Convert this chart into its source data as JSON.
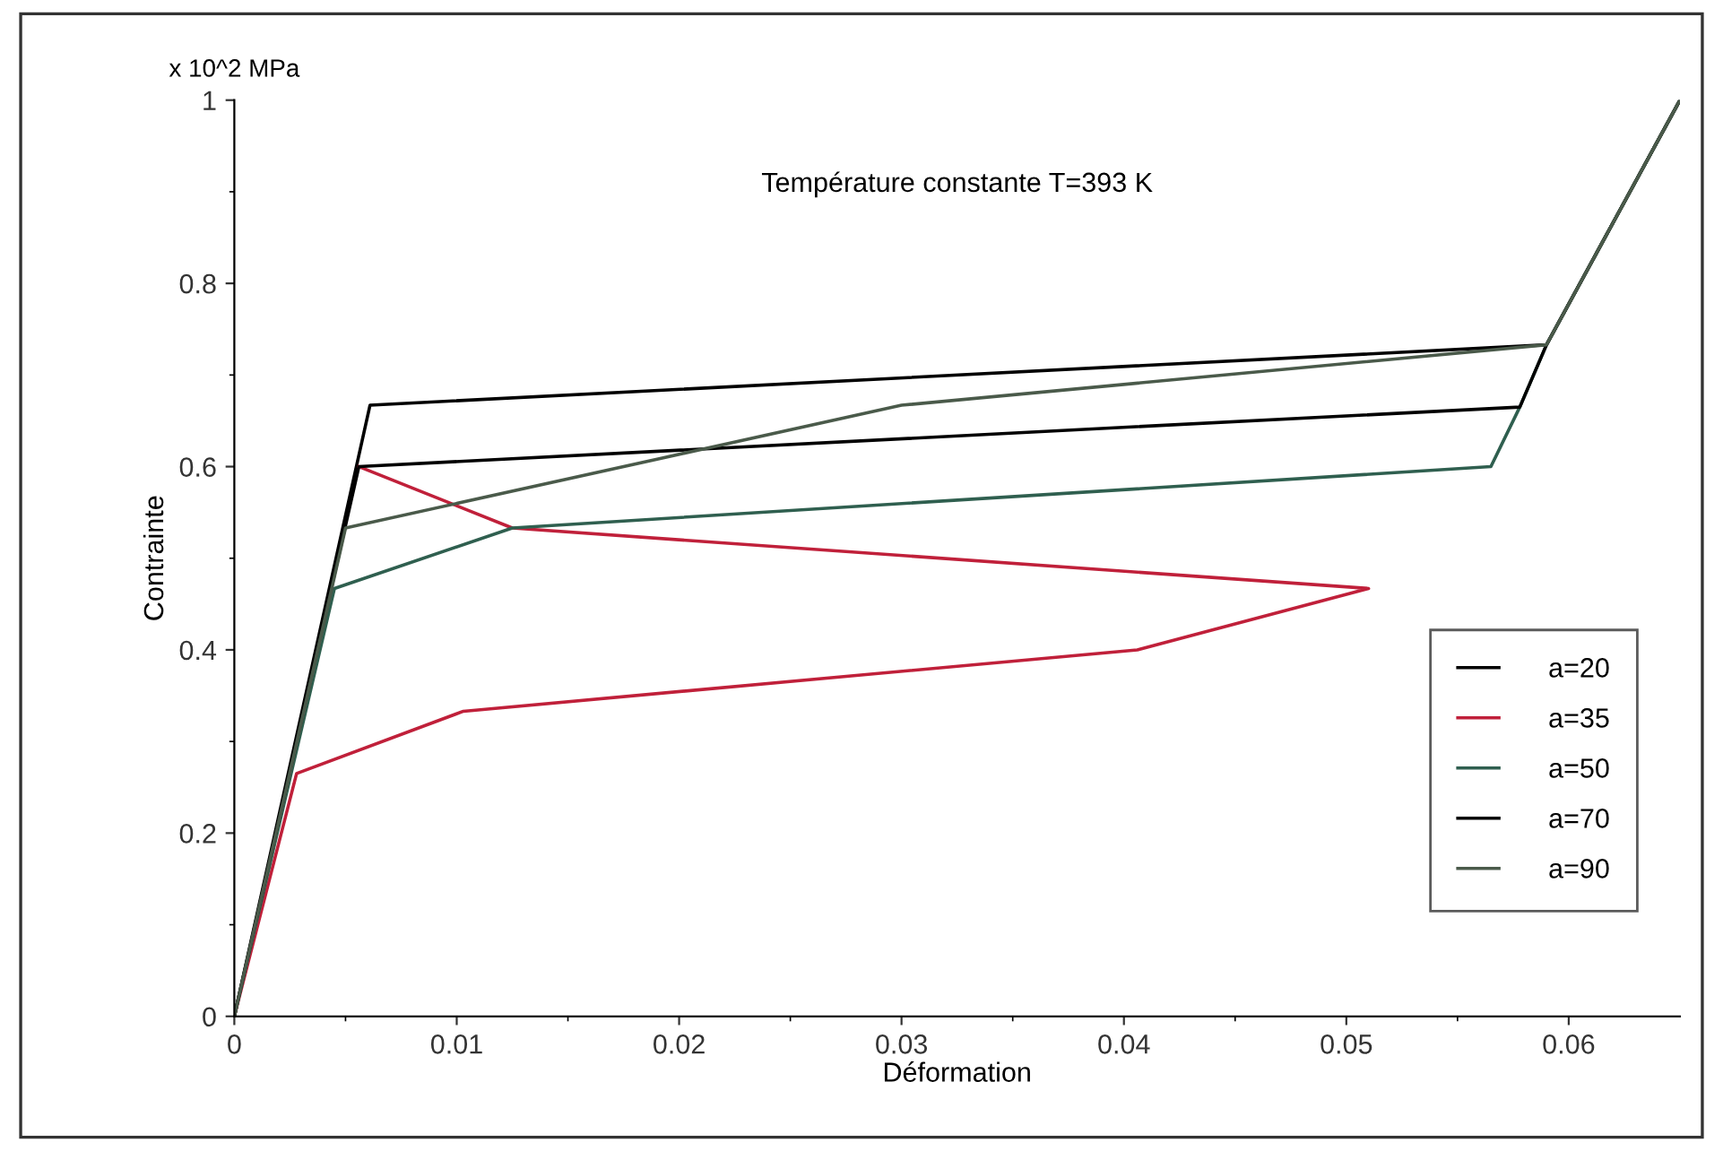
{
  "chart_data": {
    "type": "line",
    "title": "Température constante T=393 K",
    "xlabel": "Déformation",
    "ylabel": "Contrainte",
    "annotations": [
      "x 10^2 MPa"
    ],
    "xlim": [
      0,
      0.065
    ],
    "ylim": [
      0,
      1
    ],
    "xticks": [
      0,
      0.01,
      0.02,
      0.03,
      0.04,
      0.05,
      0.06
    ],
    "yticks": [
      0,
      0.2,
      0.4,
      0.6,
      0.8,
      1
    ],
    "legend": "bottom right",
    "grid": false,
    "line_style": "solid",
    "marker": "none",
    "series": [
      {
        "name": "a=20",
        "color": "#000000",
        "x": [
          0,
          0.0061,
          0.059,
          0.065
        ],
        "values": [
          0,
          0.667,
          0.733,
          1
        ]
      },
      {
        "name": "a=35",
        "color": "#c0203a",
        "x": [
          0,
          0.0028,
          0.0103,
          0.0406,
          0.051,
          0.0125,
          0.0056
        ],
        "values": [
          0,
          0.265,
          0.333,
          0.4,
          0.467,
          0.533,
          0.6
        ]
      },
      {
        "name": "a=50",
        "color": "#2f5f4f",
        "x": [
          0,
          0.0045,
          0.0125,
          0.0565,
          0.0578,
          0.059,
          0.065
        ],
        "values": [
          0,
          0.467,
          0.533,
          0.6,
          0.665,
          0.733,
          1
        ]
      },
      {
        "name": "a=70",
        "color": "#000000",
        "x": [
          0,
          0.0056,
          0.0578,
          0.059,
          0.065
        ],
        "values": [
          0,
          0.6,
          0.665,
          0.733,
          1
        ]
      },
      {
        "name": "a=90",
        "color": "#4a5a4a",
        "x": [
          0,
          0.005,
          0.03,
          0.059,
          0.065
        ],
        "values": [
          0,
          0.533,
          0.667,
          0.733,
          1
        ]
      }
    ]
  }
}
